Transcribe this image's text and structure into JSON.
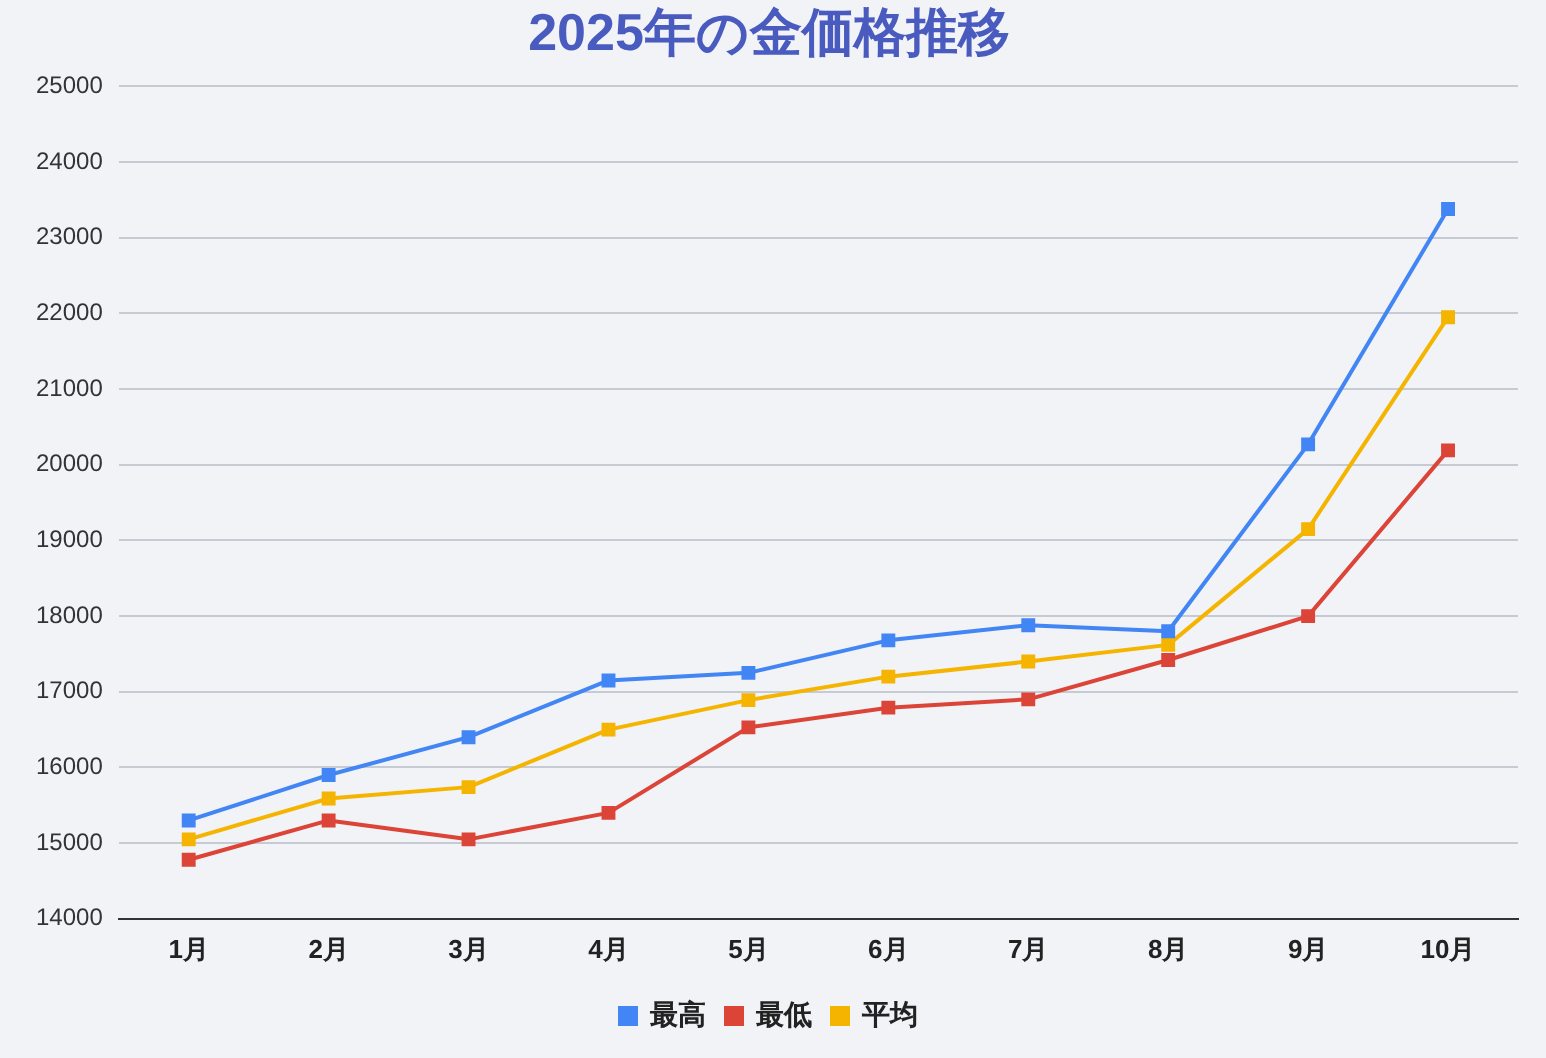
{
  "chart_data": {
    "type": "line",
    "title": "2025年の金価格推移",
    "categories": [
      "1月",
      "2月",
      "3月",
      "4月",
      "5月",
      "6月",
      "7月",
      "8月",
      "9月",
      "10月"
    ],
    "series": [
      {
        "name": "最高",
        "color": "#4285f4",
        "values": [
          15300,
          15900,
          16400,
          17150,
          17250,
          17680,
          17880,
          17800,
          20270,
          23380
        ]
      },
      {
        "name": "最低",
        "color": "#db4437",
        "values": [
          14780,
          15300,
          15050,
          15400,
          16530,
          16790,
          16900,
          17420,
          18000,
          20190
        ]
      },
      {
        "name": "平均",
        "color": "#f4b400",
        "values": [
          15050,
          15590,
          15740,
          16500,
          16890,
          17200,
          17400,
          17620,
          19150,
          21950
        ]
      }
    ],
    "ylim": [
      14000,
      25000
    ],
    "yticks": [
      14000,
      15000,
      16000,
      17000,
      18000,
      19000,
      20000,
      21000,
      22000,
      23000,
      24000,
      25000
    ],
    "grid": "y",
    "legend": "bottom",
    "marker": "square",
    "line_style": "solid"
  }
}
